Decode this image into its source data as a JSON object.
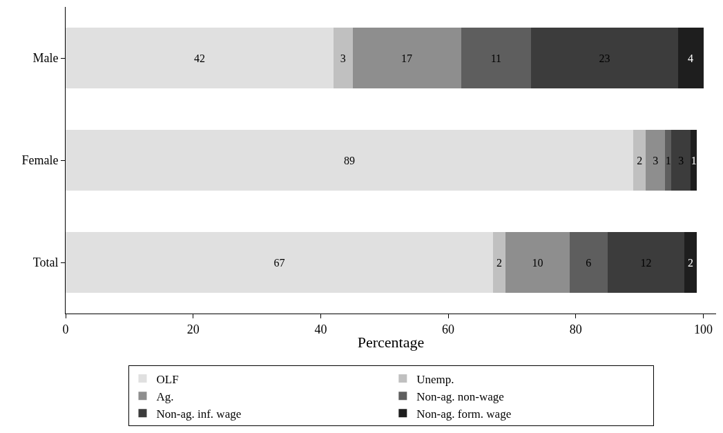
{
  "chart_data": {
    "type": "bar",
    "orientation": "horizontal",
    "stacked": true,
    "data_labels": true,
    "categories": [
      "Male",
      "Female",
      "Total"
    ],
    "xlabel": "Percentage",
    "xlim": [
      0,
      102
    ],
    "xticks": [
      0,
      20,
      40,
      60,
      80,
      100
    ],
    "legend": "bottom",
    "series": [
      {
        "name": "OLF",
        "color": "#e0e0e0",
        "values": [
          42,
          89,
          67
        ]
      },
      {
        "name": "Unemp.",
        "color": "#c0c0c0",
        "values": [
          3,
          2,
          2
        ]
      },
      {
        "name": "Ag.",
        "color": "#8e8e8e",
        "values": [
          17,
          3,
          10
        ]
      },
      {
        "name": "Non-ag. non-wage",
        "color": "#5e5e5e",
        "values": [
          11,
          1,
          6
        ]
      },
      {
        "name": "Non-ag. inf. wage",
        "color": "#3c3c3c",
        "values": [
          23,
          3,
          12
        ]
      },
      {
        "name": "Non-ag. form. wage",
        "color": "#1e1e1e",
        "values": [
          4,
          1,
          2
        ]
      }
    ]
  }
}
